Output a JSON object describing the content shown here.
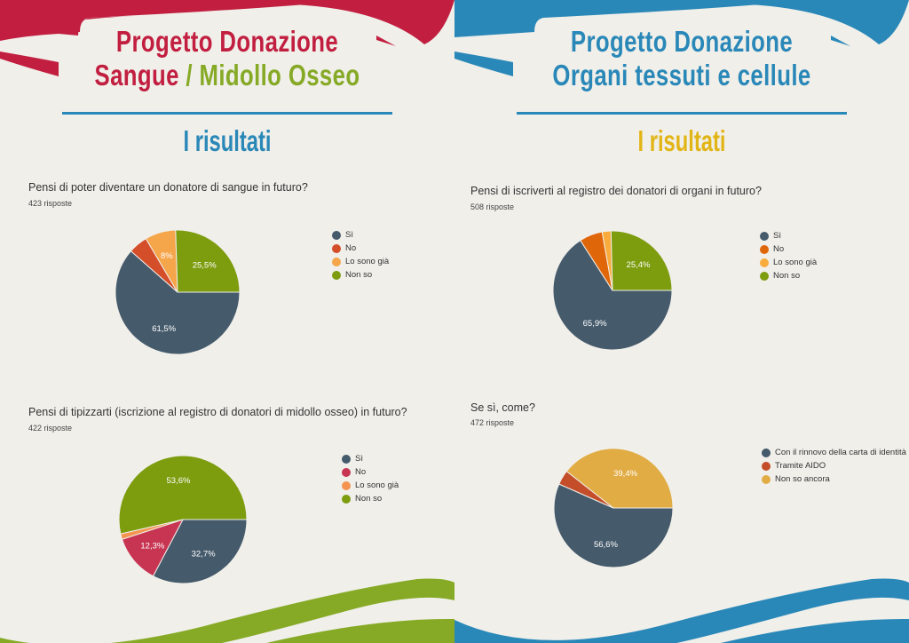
{
  "left": {
    "title_line1": "Progetto Donazione",
    "title_line2_a": "Sangue",
    "title_line2_sep": " / ",
    "title_line2_b": "Midollo Osseo",
    "subtitle": "I risultati"
  },
  "right": {
    "title_line1": "Progetto Donazione",
    "title_line2": "Organi tessuti e cellule",
    "subtitle": "I risultati"
  },
  "colors": {
    "red": "#c21f40",
    "green": "#86aa26",
    "blue": "#2a88b8",
    "yellow": "#e2b516"
  },
  "chart_data": [
    {
      "type": "pie",
      "title": "Pensi di poter diventare un donatore di sangue in futuro?",
      "responses": "423 risposte",
      "categories": [
        "Sì",
        "No",
        "Lo sono già",
        "Non so"
      ],
      "values": [
        61.5,
        5.0,
        8,
        25.5
      ],
      "labels": [
        "61,5%",
        "",
        "8%",
        "25,5%"
      ],
      "colors": [
        "#455a6b",
        "#d44e2a",
        "#f5a54a",
        "#7d9c0e"
      ],
      "legend": "right"
    },
    {
      "type": "pie",
      "title": "Pensi di iscriverti al registro dei donatori di organi in futuro?",
      "responses": "508 risposte",
      "categories": [
        "Sì",
        "No",
        "Lo sono già",
        "Non so"
      ],
      "values": [
        65.9,
        6.3,
        2.4,
        25.4
      ],
      "labels": [
        "65,9%",
        "",
        "",
        "25,4%"
      ],
      "colors": [
        "#455a6b",
        "#e0660a",
        "#f9ab3c",
        "#7d9c0e"
      ],
      "legend": "right"
    },
    {
      "type": "pie",
      "title": "Pensi di tipizzarti (iscrizione al registro di donatori di midollo osseo) in futuro?",
      "responses": "422 risposte",
      "categories": [
        "Sì",
        "No",
        "Lo sono già",
        "Non so"
      ],
      "values": [
        32.7,
        12.3,
        1.4,
        53.6
      ],
      "labels": [
        "32,7%",
        "12,3%",
        "",
        "53,6%"
      ],
      "colors": [
        "#455a6b",
        "#c73552",
        "#f49450",
        "#7d9c0e"
      ],
      "legend": "right"
    },
    {
      "type": "pie",
      "title": "Se sì, come?",
      "responses": "472 risposte",
      "categories": [
        "Con il rinnovo della carta di identità",
        "Tramite AIDO",
        "Non so ancora"
      ],
      "values": [
        56.6,
        4.0,
        39.4
      ],
      "labels": [
        "56,6%",
        "",
        "39,4%"
      ],
      "colors": [
        "#455a6b",
        "#c44d2a",
        "#e2ac44"
      ],
      "legend": "right"
    }
  ]
}
